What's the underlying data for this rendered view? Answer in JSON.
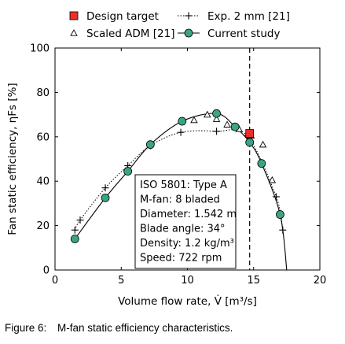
{
  "caption": {
    "figure_number": "Figure 6:",
    "text": "M-fan static efficiency characteristics."
  },
  "chart_data": {
    "type": "line",
    "title": "",
    "xlabel": "Volume flow rate, V̇ [m³/s]",
    "ylabel": "Fan static efficiency, ηFs [%]",
    "xlim": [
      0,
      20
    ],
    "ylim": [
      0,
      100
    ],
    "xticks": [
      0,
      5,
      10,
      15,
      20
    ],
    "yticks": [
      0,
      20,
      40,
      60,
      80,
      100
    ],
    "grid": false,
    "legend_position": "top",
    "design_target": {
      "name": "Design target",
      "x": 14.7,
      "y": 61.5,
      "color": "#e8302a"
    },
    "vertical_line_x": 14.7,
    "series": [
      {
        "name": "Exp. 2 mm [21]",
        "marker": "plus",
        "line": "dotted",
        "color": "#000000",
        "points": [
          [
            1.5,
            18
          ],
          [
            1.9,
            22.5
          ],
          [
            3.8,
            37
          ],
          [
            5.5,
            47
          ],
          [
            7.2,
            56
          ],
          [
            9.5,
            62
          ],
          [
            12.2,
            62.5
          ],
          [
            14.5,
            60.5
          ],
          [
            16.7,
            33
          ],
          [
            17.2,
            18
          ]
        ]
      },
      {
        "name": "Scaled ADM [21]",
        "marker": "triangle",
        "line": "none",
        "color": "#000000",
        "points": [
          [
            10.5,
            67.5
          ],
          [
            11.5,
            70
          ],
          [
            12.2,
            68
          ],
          [
            13.0,
            65.5
          ],
          [
            13.9,
            63.5
          ],
          [
            14.8,
            60.5
          ],
          [
            15.7,
            56.5
          ],
          [
            16.4,
            40.5
          ]
        ]
      },
      {
        "name": "Current study",
        "marker": "circle",
        "line": "solid",
        "color": "#3aa486",
        "points": [
          [
            1.5,
            14
          ],
          [
            3.8,
            32.5
          ],
          [
            5.5,
            44.5
          ],
          [
            7.2,
            56.5
          ],
          [
            9.6,
            67
          ],
          [
            12.2,
            70.5
          ],
          [
            13.6,
            64.5
          ],
          [
            14.7,
            57.5
          ],
          [
            15.6,
            48
          ],
          [
            17.0,
            25
          ]
        ],
        "curve_end": [
          17.5,
          0
        ]
      }
    ],
    "annotation_lines": [
      "ISO 5801: Type A",
      "M-fan: 8 bladed",
      "Diameter: 1.542 m",
      "Blade angle: 34°",
      "Density: 1.2 kg/m³",
      "Speed: 722 rpm"
    ]
  }
}
